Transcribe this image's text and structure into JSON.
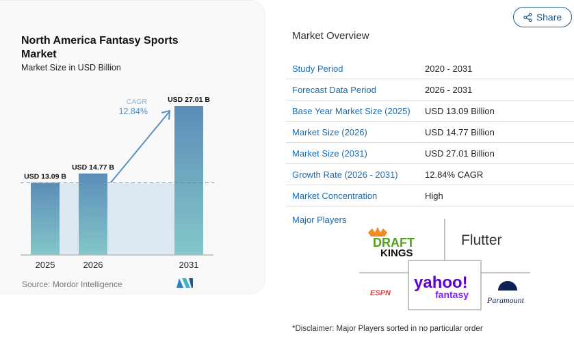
{
  "chart_data": {
    "type": "bar",
    "title": "North America Fantasy Sports Market",
    "subtitle": "Market Size in USD Billion",
    "categories": [
      "2025",
      "2026",
      "2031"
    ],
    "values": [
      13.09,
      14.77,
      27.01
    ],
    "data_labels": [
      "USD 13.09 B",
      "USD 14.77 B",
      "USD 27.01 B"
    ],
    "cagr_label": "CAGR",
    "cagr_value": "12.84%",
    "source": "Source: Mordor Intelligence",
    "colors": {
      "bar_top": "#5b8db8",
      "bar_bottom": "#84c7c9",
      "cagr": "#5b8fc0",
      "band": "#dde8f0"
    }
  },
  "share": {
    "label": "Share",
    "icon": "share-icon"
  },
  "overview": {
    "title": "Market Overview",
    "rows": [
      {
        "label": "Study Period",
        "value": "2020 - 2031"
      },
      {
        "label": "Forecast Data Period",
        "value": "2026 - 2031"
      },
      {
        "label": "Base Year Market Size (2025)",
        "value": "USD 13.09 Billion"
      },
      {
        "label": "Market Size (2026)",
        "value": "USD 14.77 Billion"
      },
      {
        "label": "Market Size (2031)",
        "value": "USD 27.01 Billion"
      },
      {
        "label": "Growth Rate (2026 - 2031)",
        "value": "12.84% CAGR"
      },
      {
        "label": "Market Concentration",
        "value": "High"
      }
    ],
    "major_players_label": "Major Players",
    "players": [
      "DraftKings",
      "Flutter",
      "ESPN",
      "yahoo! fantasy",
      "Paramount"
    ],
    "disclaimer": "*Disclaimer: Major Players sorted in no particular order"
  }
}
